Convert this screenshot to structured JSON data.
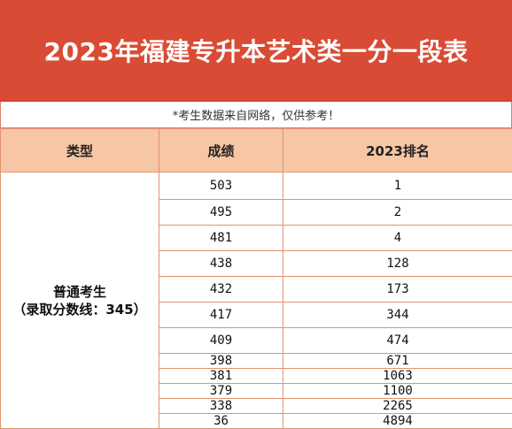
{
  "title": "2023年福建专升本艺术类一分一段表",
  "note": "*考生数据来自网络，仅供参考！",
  "headers": [
    "类型",
    "成绩",
    "2023排名"
  ],
  "category": {
    "name": "普通考生",
    "cutoff": "（录取分数线：345）"
  },
  "rows": [
    {
      "score": "503",
      "rank": "1"
    },
    {
      "score": "495",
      "rank": "2"
    },
    {
      "score": "481",
      "rank": "4"
    },
    {
      "score": "438",
      "rank": "128"
    },
    {
      "score": "432",
      "rank": "173"
    },
    {
      "score": "417",
      "rank": "344"
    },
    {
      "score": "409",
      "rank": "474"
    },
    {
      "score": "398",
      "rank": "671"
    },
    {
      "score": "381",
      "rank": "1063"
    },
    {
      "score": "379",
      "rank": "1100"
    },
    {
      "score": "338",
      "rank": "2265"
    },
    {
      "score": "36",
      "rank": "4894"
    }
  ]
}
